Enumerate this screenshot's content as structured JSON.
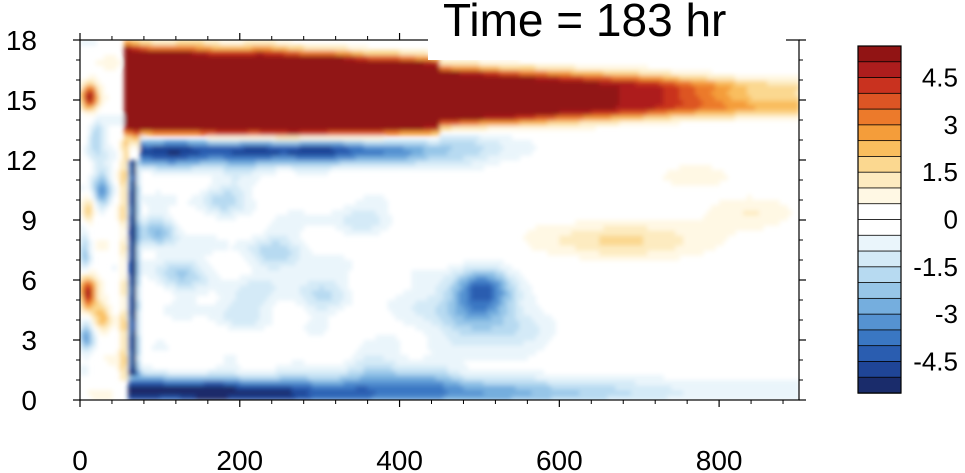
{
  "title": "Time = 183 hr",
  "chart_data": {
    "type": "heatmap",
    "title": "Time = 183 hr",
    "xlabel": "",
    "ylabel": "",
    "xlim": [
      0,
      900
    ],
    "ylim": [
      0,
      18
    ],
    "x_ticks": [
      0,
      200,
      400,
      600,
      800
    ],
    "y_ticks": [
      0,
      3,
      6,
      9,
      12,
      15,
      18
    ],
    "grid": false,
    "colorbar": {
      "levels": [
        -5.5,
        -5,
        -4.5,
        -4,
        -3.5,
        -3,
        -2.5,
        -2,
        -1.5,
        -1,
        -0.5,
        0,
        0.5,
        1,
        1.5,
        2,
        2.5,
        3,
        3.5,
        4,
        4.5,
        5,
        5.5
      ],
      "labels": [
        "4.5",
        "3",
        "1.5",
        "0",
        "-1.5",
        "-3",
        "-4.5"
      ],
      "label_values": [
        4.5,
        3,
        1.5,
        0,
        -1.5,
        -3,
        -4.5
      ],
      "colors": [
        "#1a2c6b",
        "#1f4597",
        "#2a5db0",
        "#3a77c3",
        "#5592d1",
        "#75aede",
        "#97c6e8",
        "#b7daf1",
        "#d4eaf7",
        "#eaf5fb",
        "#ffffff",
        "#ffffff",
        "#fff8e4",
        "#fdebc0",
        "#fbd890",
        "#f9be5e",
        "#f49d3a",
        "#ec7a2b",
        "#dd5524",
        "#c9321f",
        "#ad1d1d",
        "#911414"
      ]
    },
    "features": [
      {
        "x": [
          55,
          900
        ],
        "y": [
          13.6,
          16.6
        ],
        "value": 5.5,
        "note": "strong positive band, fading toward x=900"
      },
      {
        "x": [
          90,
          500
        ],
        "y": [
          12.2,
          12.9
        ],
        "value": -4.5,
        "note": "negative band below positive band"
      },
      {
        "x": [
          60,
          900
        ],
        "y": [
          0,
          1.0
        ],
        "value": -4.5,
        "note": "negative band near bottom, weakening with x"
      },
      {
        "x": [
          60,
          72
        ],
        "y": [
          3,
          11
        ],
        "value": -5,
        "note": "narrow negative vertical streak"
      },
      {
        "x": [
          0,
          40
        ],
        "y": [
          0,
          16
        ],
        "value": 4,
        "note": "alternating positive/negative left edge"
      },
      {
        "x": [
          560,
          900
        ],
        "y": [
          6.5,
          9.5
        ],
        "value": 1,
        "note": "weak positive patch"
      },
      {
        "x": [
          430,
          560
        ],
        "y": [
          3.5,
          7
        ],
        "value": -2.5,
        "note": "negative patch near (510, 5.5)"
      }
    ]
  }
}
